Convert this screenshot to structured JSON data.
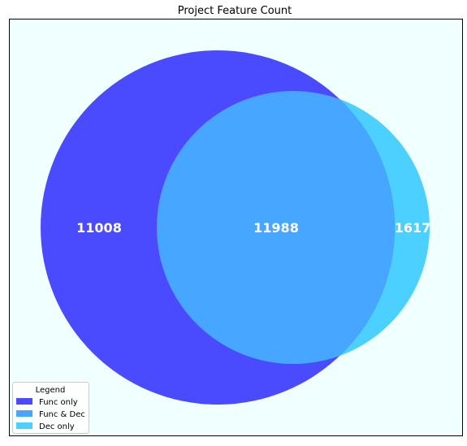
{
  "chart_data": {
    "type": "venn",
    "title": "Project Feature Count",
    "sets": [
      {
        "name": "Func",
        "color": "#4a4aff"
      },
      {
        "name": "Dec",
        "color": "#4bd0ff"
      }
    ],
    "regions": [
      {
        "key": "func_only",
        "label": "Func only",
        "value": 11008,
        "color": "#4a4aff"
      },
      {
        "key": "both",
        "label": "Func & Dec",
        "value": 11988,
        "color": "#47a6ff"
      },
      {
        "key": "dec_only",
        "label": "Dec only",
        "value": 1617,
        "color": "#4bd0ff"
      }
    ],
    "legend": {
      "title": "Legend",
      "position": "bottom-left"
    },
    "background": "#f0ffff"
  }
}
